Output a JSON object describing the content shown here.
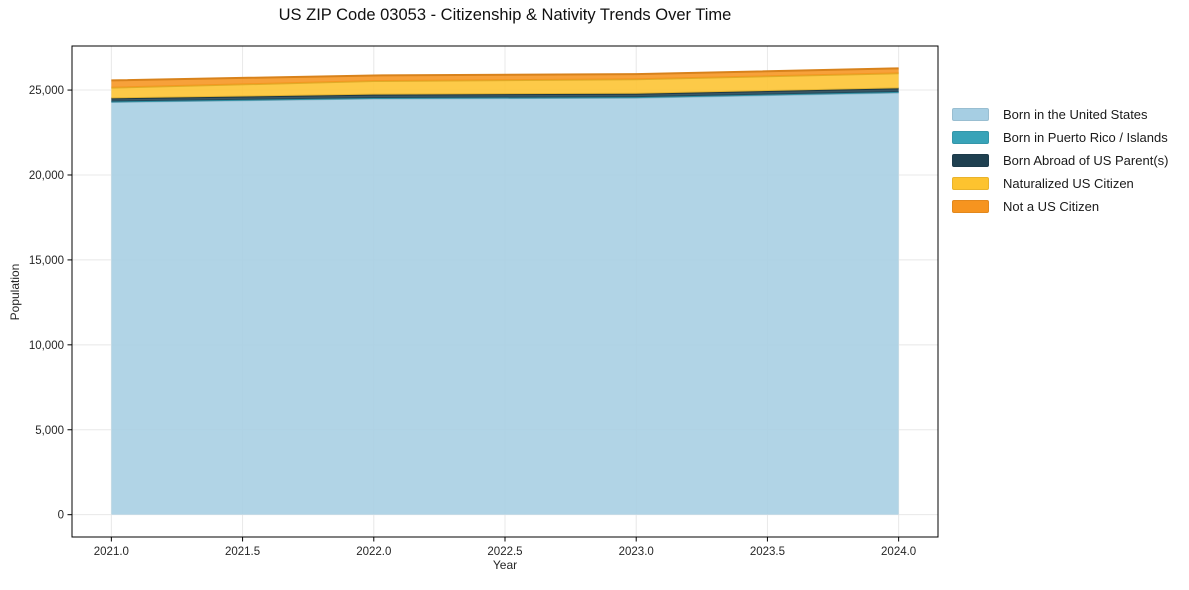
{
  "chart_data": {
    "type": "area",
    "stacked": true,
    "title": "US ZIP Code 03053 - Citizenship & Nativity Trends Over Time",
    "xlabel": "Year",
    "ylabel": "Population",
    "x": [
      2021,
      2022,
      2023,
      2024
    ],
    "series": [
      {
        "name": "Born in the United States",
        "color": "#a6cee3",
        "values": [
          24300,
          24500,
          24550,
          24850
        ]
      },
      {
        "name": "Born in Puerto Rico / Islands",
        "color": "#38a3b8",
        "values": [
          30,
          30,
          35,
          40
        ]
      },
      {
        "name": "Born Abroad of US Parent(s)",
        "color": "#1f4050",
        "values": [
          180,
          200,
          200,
          210
        ]
      },
      {
        "name": "Naturalized US Citizen",
        "color": "#fdc32f",
        "values": [
          630,
          800,
          850,
          890
        ]
      },
      {
        "name": "Not a US Citizen",
        "color": "#f6941f",
        "values": [
          430,
          330,
          300,
          290
        ]
      }
    ],
    "totals": [
      25570,
      25860,
      25935,
      26280
    ],
    "x_tick_labels": [
      "2021.0",
      "2021.5",
      "2022.0",
      "2022.5",
      "2023.0",
      "2023.5",
      "2024.0"
    ],
    "x_ticks": [
      2021.0,
      2021.5,
      2022.0,
      2022.5,
      2023.0,
      2023.5,
      2024.0
    ],
    "y_tick_labels": [
      "0",
      "5,000",
      "10,000",
      "15,000",
      "20,000",
      "25,000"
    ],
    "y_ticks": [
      0,
      5000,
      10000,
      15000,
      20000,
      25000
    ],
    "xlim": [
      2020.85,
      2024.15
    ],
    "ylim": [
      -1314,
      27594
    ],
    "grid": true,
    "legend_position": "right-outside",
    "colors": {
      "grid": "#e8e8e8",
      "spine": "#000000",
      "tick_text": "#262626",
      "title_text": "#111111",
      "background": "#ffffff"
    }
  }
}
